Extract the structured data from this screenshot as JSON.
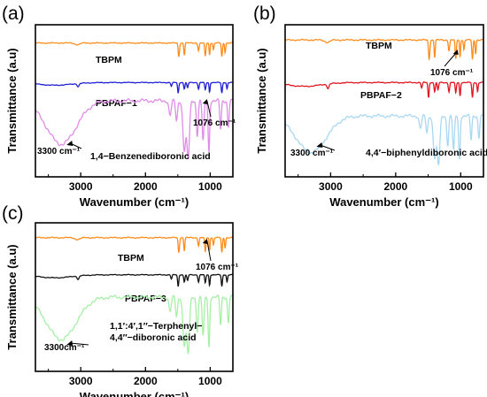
{
  "colors": {
    "orange": "#ff8c1a",
    "blue": "#1f1fd6",
    "red": "#e0141e",
    "black": "#111111",
    "violet": "#e08ce8",
    "lightblue": "#a9d8f2",
    "lightgreen": "#a6f0a6"
  },
  "chart_data": [
    {
      "type": "line",
      "panel_label": "(a)",
      "xlabel": "Wavenumber (cm⁻¹)",
      "ylabel": "Transmittance (a.u)",
      "xlim": [
        3700,
        650
      ],
      "x_reversed": true,
      "xticks": [
        3000,
        2000,
        1000
      ],
      "xtick_labels": [
        "3000",
        "2000",
        "1000"
      ],
      "series": [
        {
          "name": "TBPM",
          "color": "#ff8c1a",
          "offset": 0.88,
          "amp": 0.09,
          "kind": "tbpm"
        },
        {
          "name": "PBPAF−1",
          "color": "#1f1fd6",
          "offset": 0.62,
          "amp": 0.07,
          "kind": "pbpaf"
        },
        {
          "name": "1,4−Benzenediboronic acid",
          "color": "#e08ce8",
          "offset": 0.5,
          "amp": 0.38,
          "kind": "boronic"
        }
      ],
      "annotations": [
        {
          "text": "1076 cm⁻¹",
          "x": 1076
        },
        {
          "text": "3300 cm⁻¹",
          "x": 3300
        }
      ]
    },
    {
      "type": "line",
      "panel_label": "(b)",
      "xlabel": "Wavenumber (cm⁻¹)",
      "ylabel": "Transmittance (a.u)",
      "xlim": [
        3700,
        650
      ],
      "x_reversed": true,
      "xticks": [
        3000,
        2000,
        1000
      ],
      "xtick_labels": [
        "3000",
        "2000",
        "1000"
      ],
      "series": [
        {
          "name": "TBPM",
          "color": "#ff8c1a",
          "offset": 0.9,
          "amp": 0.13,
          "kind": "tbpm"
        },
        {
          "name": "PBPAF−2",
          "color": "#e0141e",
          "offset": 0.62,
          "amp": 0.1,
          "kind": "pbpaf"
        },
        {
          "name": "4,4′−biphenyldiboronic acid",
          "color": "#a9d8f2",
          "offset": 0.4,
          "amp": 0.32,
          "kind": "boronic"
        }
      ],
      "annotations": [
        {
          "text": "1076 cm⁻¹",
          "x": 1076
        },
        {
          "text": "3300 cm⁻¹",
          "x": 3300
        }
      ]
    },
    {
      "type": "line",
      "panel_label": "(c)",
      "xlabel": "Wavenumber (cm⁻¹)",
      "ylabel": "Transmittance (a.u)",
      "xlim": [
        3700,
        650
      ],
      "x_reversed": true,
      "xticks": [
        3000,
        2000,
        1000
      ],
      "xtick_labels": [
        "3000",
        "2000",
        "1000"
      ],
      "series": [
        {
          "name": "TBPM",
          "color": "#ff8c1a",
          "offset": 0.9,
          "amp": 0.1,
          "kind": "tbpm"
        },
        {
          "name": "PBPAF−3",
          "color": "#111111",
          "offset": 0.65,
          "amp": 0.08,
          "kind": "pbpaf"
        },
        {
          "name": "1,1′:4′,1′′−Terphenyl−\n4,4′′−diboronic acid",
          "color": "#a6f0a6",
          "offset": 0.5,
          "amp": 0.38,
          "kind": "boronic"
        }
      ],
      "annotations": [
        {
          "text": "1076 cm⁻¹",
          "x": 1076
        },
        {
          "text": "3300cm⁻¹",
          "x": 3300
        }
      ]
    }
  ]
}
